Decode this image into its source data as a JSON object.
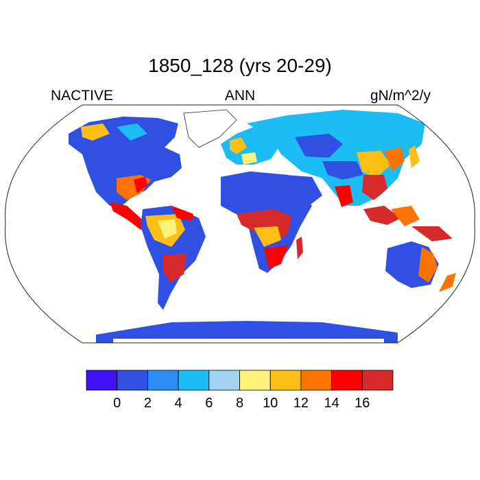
{
  "title": "1850_128 (yrs 20-29)",
  "left_label": "NACTIVE",
  "center_label": "ANN",
  "right_label": "gN/m^2/y",
  "colorbar": {
    "colors": [
      "#3f12f5",
      "#2f50e3",
      "#2a8cf4",
      "#1cbcf5",
      "#a3d3ef",
      "#fff17c",
      "#fdbf16",
      "#fc7300",
      "#ff0000",
      "#d62a2a"
    ],
    "ticks": [
      "0",
      "2",
      "4",
      "6",
      "8",
      "10",
      "12",
      "14",
      "16"
    ]
  }
}
